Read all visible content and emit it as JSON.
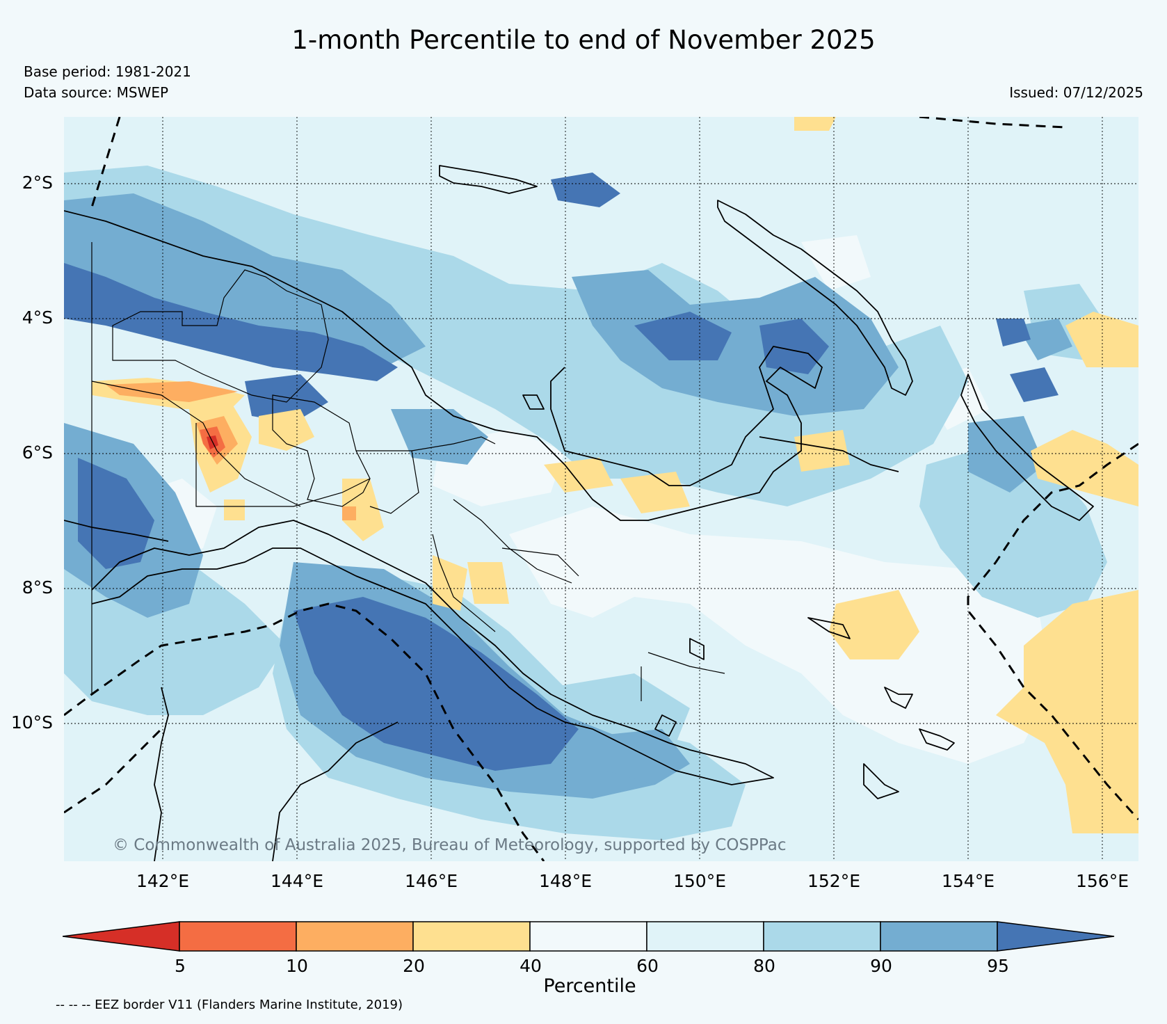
{
  "title": "1-month Percentile to end of November 2025",
  "meta": {
    "base_period": "Base period: 1981-2021",
    "data_source": "Data source: MSWEP",
    "issued": "Issued: 07/12/2025"
  },
  "map": {
    "copyright": "© Commonwealth of Australia 2025, Bureau of Meteorology, supported by COSPPac",
    "lat_labels": [
      "2°S",
      "4°S",
      "6°S",
      "8°S",
      "10°S"
    ],
    "lon_labels": [
      "142°E",
      "144°E",
      "146°E",
      "148°E",
      "150°E",
      "152°E",
      "154°E",
      "156°E"
    ],
    "extent": {
      "lon_min": 140.5,
      "lon_max": 156.5,
      "lat_min": -12.0,
      "lat_max": -1.0
    },
    "layers": [
      "percentile-fill",
      "coastline",
      "province-borders",
      "eez-border",
      "graticule"
    ]
  },
  "colorbar": {
    "label": "Percentile",
    "ticks": [
      "5",
      "10",
      "20",
      "40",
      "60",
      "80",
      "90",
      "95"
    ],
    "colors": [
      "#d62f27",
      "#f46d43",
      "#fdae61",
      "#fee090",
      "#f2f9fb",
      "#e0f3f8",
      "#abd9e9",
      "#74add1",
      "#4575b4"
    ],
    "extend": "both"
  },
  "legend": {
    "eez_note": "-- -- -- EEZ border V11 (Flanders Marine Institute, 2019)"
  }
}
